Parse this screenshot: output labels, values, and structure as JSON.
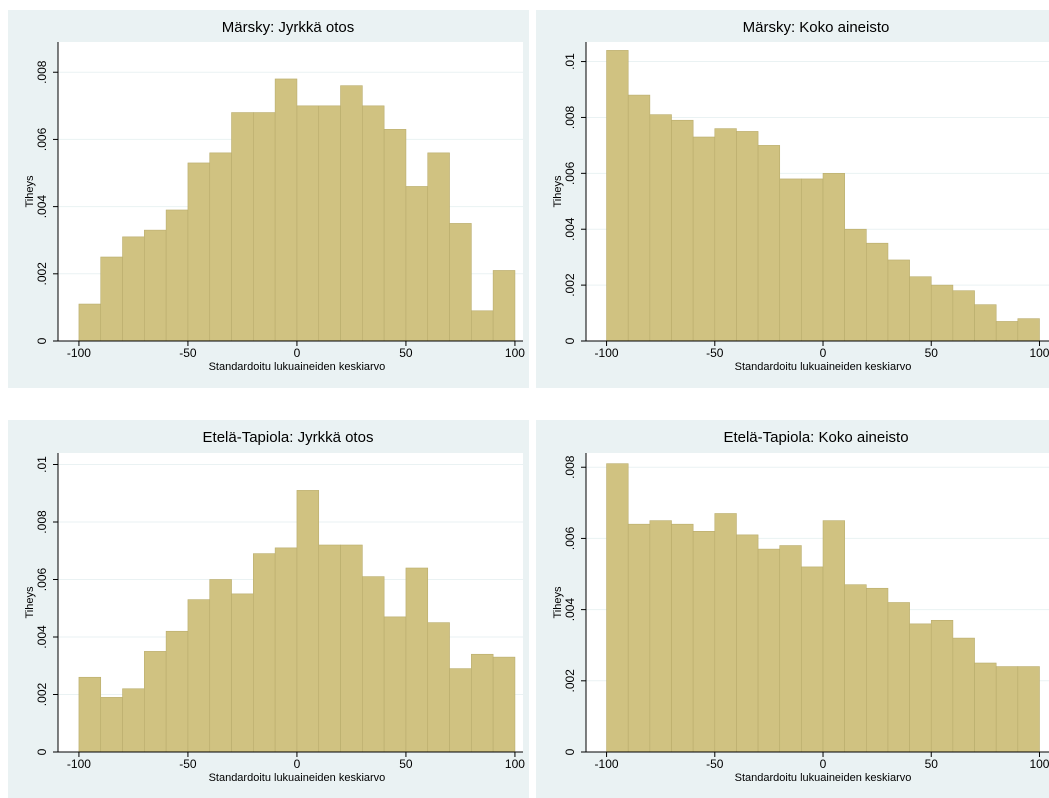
{
  "chart_data": [
    {
      "type": "histogram",
      "title": "Märsky: Jyrkkä otos",
      "xlabel": "Standardoitu lukuaineiden keskiarvo",
      "ylabel": "Tiheys",
      "bins": [
        -100,
        -90,
        -80,
        -70,
        -60,
        -50,
        -40,
        -30,
        -20,
        -10,
        0,
        10,
        20,
        30,
        40,
        50,
        60,
        70,
        80,
        90,
        100
      ],
      "values": [
        0.0011,
        0.0025,
        0.0031,
        0.0033,
        0.0039,
        0.0053,
        0.0056,
        0.0068,
        0.0068,
        0.0078,
        0.007,
        0.007,
        0.0076,
        0.007,
        0.0063,
        0.0046,
        0.0056,
        0.0035,
        0.0009,
        0.0021
      ],
      "color": "#d0c281",
      "grid": true,
      "xlim": [
        -109.6,
        103.7
      ],
      "xticks": [
        -100,
        -50,
        0,
        50,
        100
      ],
      "ylim": [
        0,
        0.0089
      ],
      "yticks": [
        0,
        {
          "value": 0.002,
          "label": ".002"
        },
        {
          "value": 0.004,
          "label": ".004"
        },
        {
          "value": 0.006,
          "label": ".006"
        },
        {
          "value": 0.008,
          "label": ".008"
        }
      ]
    },
    {
      "type": "histogram",
      "title": "Märsky: Koko aineisto",
      "xlabel": "Standardoitu lukuaineiden keskiarvo",
      "ylabel": "Tiheys",
      "bins": [
        -100,
        -90,
        -80,
        -70,
        -60,
        -50,
        -40,
        -30,
        -20,
        -10,
        0,
        10,
        20,
        30,
        40,
        50,
        60,
        70,
        80,
        90,
        100
      ],
      "values": [
        0.0104,
        0.0088,
        0.0081,
        0.0079,
        0.0073,
        0.0076,
        0.0075,
        0.007,
        0.0058,
        0.0058,
        0.006,
        0.004,
        0.0035,
        0.0029,
        0.0023,
        0.002,
        0.0018,
        0.0013,
        0.0007,
        0.0008
      ],
      "color": "#d0c281",
      "grid": true,
      "xlim": [
        -109.5,
        104.4
      ],
      "xticks": [
        -100,
        -50,
        0,
        50,
        100
      ],
      "ylim": [
        0,
        0.0107
      ],
      "yticks": [
        0,
        {
          "value": 0.002,
          "label": ".002"
        },
        {
          "value": 0.004,
          "label": ".004"
        },
        {
          "value": 0.006,
          "label": ".006"
        },
        {
          "value": 0.008,
          "label": ".008"
        },
        {
          "value": 0.01,
          "label": ".01"
        }
      ]
    },
    {
      "type": "histogram",
      "title": "Etelä-Tapiola: Jyrkkä otos",
      "xlabel": "Standardoitu lukuaineiden keskiarvo",
      "ylabel": "Tiheys",
      "bins": [
        -100,
        -90,
        -80,
        -70,
        -60,
        -50,
        -40,
        -30,
        -20,
        -10,
        0,
        10,
        20,
        30,
        40,
        50,
        60,
        70,
        80,
        90,
        100
      ],
      "values": [
        0.0026,
        0.0019,
        0.0022,
        0.0035,
        0.0042,
        0.0053,
        0.006,
        0.0055,
        0.0069,
        0.0071,
        0.0091,
        0.0072,
        0.0072,
        0.0061,
        0.0047,
        0.0064,
        0.0045,
        0.0029,
        0.0034,
        0.0033
      ],
      "color": "#d0c281",
      "grid": true,
      "xlim": [
        -109.6,
        103.7
      ],
      "xticks": [
        -100,
        -50,
        0,
        50,
        100
      ],
      "ylim": [
        0,
        0.0104
      ],
      "yticks": [
        0,
        {
          "value": 0.002,
          "label": ".002"
        },
        {
          "value": 0.004,
          "label": ".004"
        },
        {
          "value": 0.006,
          "label": ".006"
        },
        {
          "value": 0.008,
          "label": ".008"
        },
        {
          "value": 0.01,
          "label": ".01"
        }
      ]
    },
    {
      "type": "histogram",
      "title": "Etelä-Tapiola: Koko aineisto",
      "xlabel": "Standardoitu lukuaineiden keskiarvo",
      "ylabel": "Tiheys",
      "bins": [
        -100,
        -90,
        -80,
        -70,
        -60,
        -50,
        -40,
        -30,
        -20,
        -10,
        0,
        10,
        20,
        30,
        40,
        50,
        60,
        70,
        80,
        90,
        100
      ],
      "values": [
        0.0081,
        0.0064,
        0.0065,
        0.0064,
        0.0062,
        0.0067,
        0.0061,
        0.0057,
        0.0058,
        0.0052,
        0.0065,
        0.0047,
        0.0046,
        0.0042,
        0.0036,
        0.0037,
        0.0032,
        0.0025,
        0.0024,
        0.0024
      ],
      "color": "#d0c281",
      "grid": true,
      "xlim": [
        -109.5,
        104.4
      ],
      "xticks": [
        -100,
        -50,
        0,
        50,
        100
      ],
      "ylim": [
        0,
        0.0084
      ],
      "yticks": [
        0,
        {
          "value": 0.002,
          "label": ".002"
        },
        {
          "value": 0.004,
          "label": ".004"
        },
        {
          "value": 0.006,
          "label": ".006"
        },
        {
          "value": 0.008,
          "label": ".008"
        }
      ]
    }
  ]
}
